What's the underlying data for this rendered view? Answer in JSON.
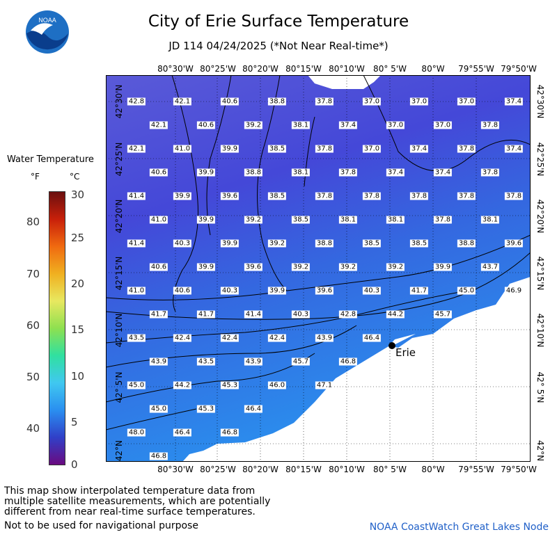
{
  "title": "City of Erie Surface Temperature",
  "subtitle": "JD 114 04/24/2025 (*Not Near Real-time*)",
  "logo_text": "NOAA",
  "map": {
    "lon_labels": [
      "80°30'W",
      "80°25'W",
      "80°20'W",
      "80°15'W",
      "80°10'W",
      "80° 5'W",
      "80°W",
      "79°55'W",
      "79°50'W"
    ],
    "lat_labels": [
      "42°30'N",
      "42°25'N",
      "42°20'N",
      "42°15'N",
      "42°10'N",
      "42° 5'N",
      "42°N"
    ],
    "city_label": "Erie",
    "temperature_values": [
      [
        "42.8",
        "42.1",
        "40.6",
        "38.8",
        "37.8",
        "37.0",
        "37.0",
        "37.0",
        "37.4"
      ],
      [
        "42.1",
        "40.6",
        "39.2",
        "38.1",
        "37.4",
        "37.0",
        "37.0",
        "37.8"
      ],
      [
        "42.1",
        "41.0",
        "39.9",
        "38.5",
        "37.8",
        "37.0",
        "37.4",
        "37.8",
        "37.4"
      ],
      [
        "40.6",
        "39.9",
        "38.8",
        "38.1",
        "37.8",
        "37.4",
        "37.4",
        "37.8"
      ],
      [
        "41.4",
        "39.9",
        "39.6",
        "38.5",
        "37.8",
        "37.8",
        "37.8",
        "37.8",
        "37.8"
      ],
      [
        "41.0",
        "39.9",
        "39.2",
        "38.5",
        "38.1",
        "38.1",
        "37.8",
        "38.1"
      ],
      [
        "41.4",
        "40.3",
        "39.9",
        "39.2",
        "38.8",
        "38.5",
        "38.5",
        "38.8",
        "39.6"
      ],
      [
        "40.6",
        "39.9",
        "39.6",
        "39.2",
        "39.2",
        "39.2",
        "39.9",
        "43.7"
      ],
      [
        "41.0",
        "40.6",
        "40.3",
        "39.9",
        "39.6",
        "40.3",
        "41.7",
        "45.0",
        "46.9"
      ],
      [
        "41.7",
        "41.7",
        "41.4",
        "40.3",
        "42.8",
        "44.2",
        "45.7"
      ],
      [
        "43.5",
        "42.4",
        "42.4",
        "42.4",
        "43.9",
        "46.4"
      ],
      [
        "43.9",
        "43.5",
        "43.9",
        "45.7",
        "46.8"
      ],
      [
        "45.0",
        "44.2",
        "45.3",
        "46.0",
        "47.1"
      ],
      [
        "45.0",
        "45.3",
        "46.4"
      ],
      [
        "48.0",
        "46.4",
        "46.8"
      ],
      [
        "46.8"
      ]
    ]
  },
  "legend": {
    "title": "Water Temperature",
    "unit_f": "°F",
    "unit_c": "°C",
    "ticks_f": [
      "70",
      "80",
      "60",
      "50",
      "40"
    ],
    "ticks_c": [
      "30",
      "25",
      "20",
      "15",
      "10",
      "5",
      "0"
    ]
  },
  "footnote": [
    "This map show interpolated temperature data from",
    "multiple satellite measurements, which are potentially",
    "different from near real-time surface temperatures.",
    "Not to be used for navigational purpose"
  ],
  "credit": "NOAA CoastWatch Great Lakes Node",
  "colors": {
    "water_deep": "#4a3bc8",
    "water_mid": "#2a64e8",
    "water_shallow": "#2a8ff0",
    "land": "#ffffff",
    "credit": "#2060c8"
  }
}
